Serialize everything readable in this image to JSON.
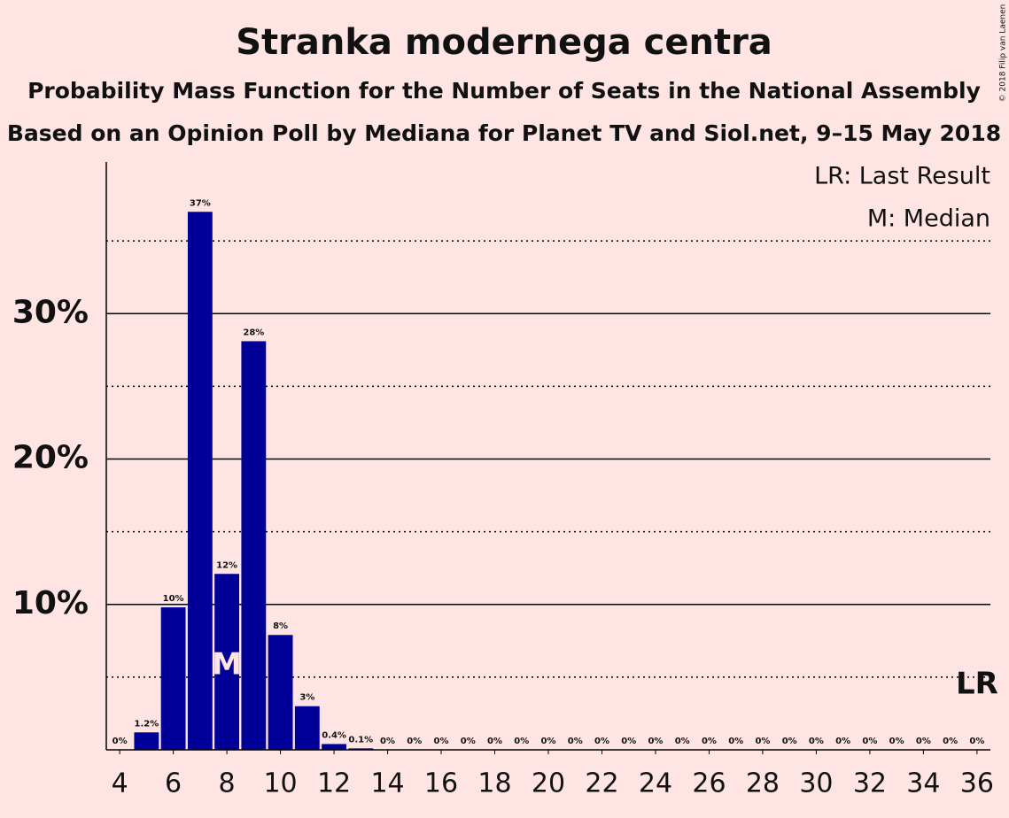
{
  "chart_data": {
    "type": "bar",
    "title": "Stranka modernega centra",
    "subtitle": "Probability Mass Function for the Number of Seats in the National Assembly",
    "subtitle2": "Based on an Opinion Poll by Mediana for Planet TV and Siol.net, 9–15 May 2018",
    "credit": "© 2018 Filip van Laenen",
    "x": [
      4,
      5,
      6,
      7,
      8,
      9,
      10,
      11,
      12,
      13,
      14,
      15,
      16,
      17,
      18,
      19,
      20,
      21,
      22,
      23,
      24,
      25,
      26,
      27,
      28,
      29,
      30,
      31,
      32,
      33,
      34,
      35,
      36
    ],
    "values": [
      0,
      1.2,
      9.8,
      37,
      12.1,
      28.1,
      7.9,
      3,
      0.4,
      0.1,
      0,
      0,
      0,
      0,
      0,
      0,
      0,
      0,
      0,
      0,
      0,
      0,
      0,
      0,
      0,
      0,
      0,
      0,
      0,
      0,
      0,
      0,
      0
    ],
    "value_labels": [
      "0%",
      "1.2%",
      "10%",
      "37%",
      "12%",
      "28%",
      "8%",
      "3%",
      "0.4%",
      "0.1%",
      "0%",
      "0%",
      "0%",
      "0%",
      "0%",
      "0%",
      "0%",
      "0%",
      "0%",
      "0%",
      "0%",
      "0%",
      "0%",
      "0%",
      "0%",
      "0%",
      "0%",
      "0%",
      "0%",
      "0%",
      "0%",
      "0%",
      "0%"
    ],
    "color": "#000099",
    "xlim": [
      3.5,
      36.5
    ],
    "xticks": [
      4,
      6,
      8,
      10,
      12,
      14,
      16,
      18,
      20,
      22,
      24,
      26,
      28,
      30,
      32,
      34,
      36
    ],
    "ylim": [
      0,
      40
    ],
    "yticks": [
      {
        "value": 10,
        "label": "10%"
      },
      {
        "value": 20,
        "label": "20%"
      },
      {
        "value": 30,
        "label": "30%"
      }
    ],
    "minor_yticks": [
      5,
      15,
      25,
      35
    ],
    "grid": true,
    "median": 8,
    "median_marker": "M",
    "last_result": 36,
    "last_result_marker": "LR",
    "legend": [
      "LR: Last Result",
      "M: Median"
    ]
  }
}
